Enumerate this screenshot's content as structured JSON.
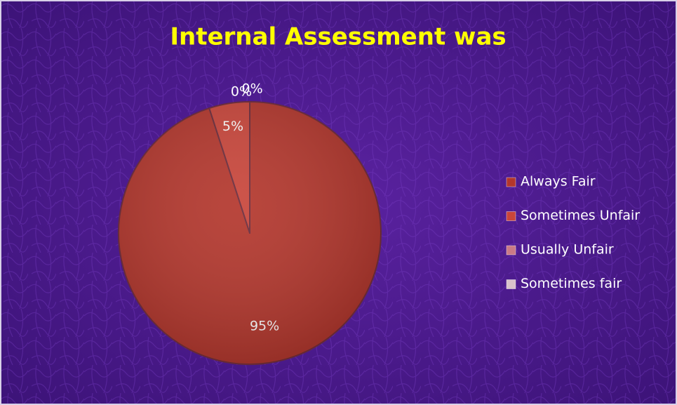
{
  "chart_data": {
    "type": "pie",
    "title": "Internal Assessment was",
    "categories": [
      "Always Fair",
      "Sometimes Unfair",
      "Usually Unfair",
      "Sometimes fair"
    ],
    "values": [
      95,
      5,
      0,
      0
    ],
    "value_labels": [
      "95%",
      "5%",
      "0%",
      "0%"
    ],
    "colors": [
      "#b3362c",
      "#c9453a",
      "#c97a86",
      "#d9c3cb"
    ],
    "legend": "right"
  }
}
